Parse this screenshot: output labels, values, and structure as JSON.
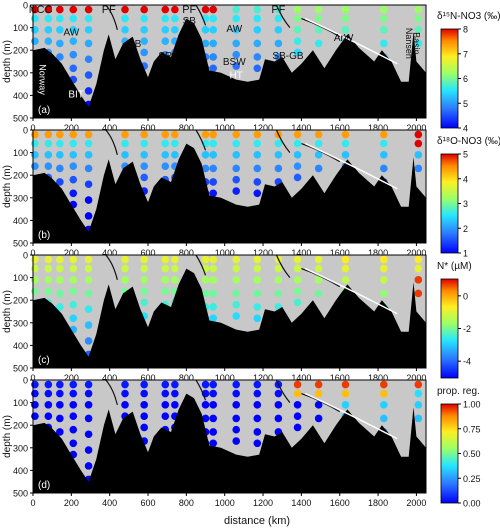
{
  "chart_data": [
    {
      "type": "scatter",
      "panel_label": "(a)",
      "colorbar_label": "δ¹⁵N-NO3 (‰)",
      "cbar_ticks": [
        "8",
        "7",
        "6",
        "5",
        "4"
      ],
      "vmin": 4,
      "vmax": 8,
      "xlim": [
        0,
        2050
      ],
      "ylim": [
        500,
        0
      ],
      "x_ticks": [
        "0",
        "200",
        "400",
        "600",
        "800",
        "1000",
        "1200",
        "1400",
        "1600",
        "1800",
        "2000"
      ],
      "y_ticks": [
        "0",
        "100",
        "200",
        "300",
        "400",
        "500"
      ],
      "ylabel": "depth (m)",
      "annotations": [
        {
          "text": "NCC",
          "x": 40,
          "y": -35
        },
        {
          "text": "PF",
          "x": 395,
          "y": -35
        },
        {
          "text": "PF",
          "x": 815,
          "y": -35
        },
        {
          "text": "PF",
          "x": 1280,
          "y": -35
        },
        {
          "text": "AW",
          "x": 200,
          "y": 135
        },
        {
          "text": "SB",
          "x": 530,
          "y": 185
        },
        {
          "text": "SR",
          "x": 690,
          "y": 240
        },
        {
          "text": "SB",
          "x": 815,
          "y": 85
        },
        {
          "text": "AW",
          "x": 1050,
          "y": 120
        },
        {
          "text": "BSW",
          "x": 1050,
          "y": 265
        },
        {
          "text": "HT",
          "x": 1060,
          "y": 325
        },
        {
          "text": "SB-GB",
          "x": 1330,
          "y": 240
        },
        {
          "text": "ArW",
          "x": 1620,
          "y": 160
        },
        {
          "text": "Norway",
          "x": 35,
          "y": 330
        },
        {
          "text": "BIT",
          "x": 225,
          "y": 410
        },
        {
          "text": "Nansen",
          "x": 1945,
          "y": 170
        },
        {
          "text": "Basin",
          "x": 1985,
          "y": 170
        }
      ]
    },
    {
      "type": "scatter",
      "panel_label": "(b)",
      "colorbar_label": "δ¹⁸O-NO3 (‰)",
      "cbar_ticks": [
        "5",
        "4",
        "3",
        "2",
        "1"
      ],
      "vmin": 1,
      "vmax": 5,
      "xlim": [
        0,
        2050
      ],
      "ylim": [
        500,
        0
      ],
      "x_ticks": [
        "0",
        "200",
        "400",
        "600",
        "800",
        "1000",
        "1200",
        "1400",
        "1600",
        "1800",
        "2000"
      ],
      "y_ticks": [
        "0",
        "100",
        "200",
        "300",
        "400",
        "500"
      ],
      "ylabel": "depth (m)"
    },
    {
      "type": "scatter",
      "panel_label": "(c)",
      "colorbar_label": "N* (µM)",
      "cbar_ticks": [
        "0",
        "-2",
        "-4"
      ],
      "vmin": -4.5,
      "vmax": 1.5,
      "xlim": [
        0,
        2050
      ],
      "ylim": [
        500,
        0
      ],
      "x_ticks": [
        "0",
        "200",
        "400",
        "600",
        "800",
        "1000",
        "1200",
        "1400",
        "1600",
        "1800",
        "2000"
      ],
      "y_ticks": [
        "0",
        "100",
        "200",
        "300",
        "400",
        "500"
      ],
      "ylabel": "depth (m)"
    },
    {
      "type": "scatter",
      "panel_label": "(d)",
      "colorbar_label": "prop. reg.",
      "cbar_ticks": [
        "1.00",
        "0.75",
        "0.50",
        "0.25",
        "0.00"
      ],
      "vmin": 0,
      "vmax": 1,
      "xlim": [
        0,
        2050
      ],
      "ylim": [
        500,
        0
      ],
      "x_ticks": [
        "0",
        "200",
        "400",
        "600",
        "800",
        "1000",
        "1200",
        "1400",
        "1600",
        "1800",
        "2000"
      ],
      "y_ticks": [
        "0",
        "100",
        "200",
        "300",
        "400",
        "500"
      ],
      "ylabel": "depth (m)",
      "xlabel": "distance (km)"
    }
  ],
  "stations": [
    {
      "x": 10,
      "d": [
        20,
        60,
        110,
        160
      ]
    },
    {
      "x": 80,
      "d": [
        20,
        60,
        110,
        160,
        210
      ]
    },
    {
      "x": 140,
      "d": [
        20,
        60,
        110,
        170,
        230
      ]
    },
    {
      "x": 210,
      "d": [
        20,
        60,
        110,
        160,
        220,
        280,
        330
      ]
    },
    {
      "x": 290,
      "d": [
        20,
        60,
        110,
        170,
        240,
        310,
        380,
        440
      ]
    },
    {
      "x": 480,
      "d": [
        20,
        60,
        110,
        160
      ]
    },
    {
      "x": 580,
      "d": [
        20,
        60,
        110,
        160,
        210,
        270
      ]
    },
    {
      "x": 690,
      "d": [
        20,
        60,
        110,
        160,
        220
      ]
    },
    {
      "x": 740,
      "d": [
        20,
        60,
        110,
        160,
        210
      ]
    },
    {
      "x": 900,
      "d": [
        20,
        60,
        110,
        170,
        230,
        280
      ]
    },
    {
      "x": 940,
      "d": [
        20,
        60,
        110,
        170,
        230,
        280
      ]
    },
    {
      "x": 1060,
      "d": [
        20,
        60,
        110,
        170,
        220,
        270
      ]
    },
    {
      "x": 1170,
      "d": [
        20,
        60,
        110,
        170,
        230,
        280
      ]
    },
    {
      "x": 1280,
      "d": [
        20,
        60,
        110,
        170,
        230
      ]
    },
    {
      "x": 1380,
      "d": [
        20,
        60,
        110,
        160,
        210
      ]
    },
    {
      "x": 1490,
      "d": [
        20,
        60,
        110,
        170
      ]
    },
    {
      "x": 1630,
      "d": [
        20,
        60,
        110,
        160
      ]
    },
    {
      "x": 1830,
      "d": [
        20,
        60,
        110,
        170,
        230
      ]
    },
    {
      "x": 2010,
      "d": [
        20,
        60,
        110,
        170
      ]
    }
  ],
  "bathymetry": [
    [
      0,
      200
    ],
    [
      60,
      190
    ],
    [
      100,
      215
    ],
    [
      150,
      260
    ],
    [
      200,
      330
    ],
    [
      250,
      400
    ],
    [
      290,
      450
    ],
    [
      330,
      350
    ],
    [
      370,
      200
    ],
    [
      395,
      130
    ],
    [
      430,
      240
    ],
    [
      470,
      170
    ],
    [
      520,
      140
    ],
    [
      560,
      240
    ],
    [
      600,
      320
    ],
    [
      630,
      250
    ],
    [
      670,
      210
    ],
    [
      720,
      230
    ],
    [
      760,
      130
    ],
    [
      800,
      60
    ],
    [
      840,
      80
    ],
    [
      880,
      150
    ],
    [
      920,
      290
    ],
    [
      980,
      300
    ],
    [
      1060,
      330
    ],
    [
      1120,
      340
    ],
    [
      1180,
      330
    ],
    [
      1210,
      240
    ],
    [
      1260,
      250
    ],
    [
      1300,
      230
    ],
    [
      1350,
      300
    ],
    [
      1400,
      260
    ],
    [
      1460,
      200
    ],
    [
      1520,
      280
    ],
    [
      1580,
      200
    ],
    [
      1640,
      130
    ],
    [
      1700,
      190
    ],
    [
      1780,
      250
    ],
    [
      1820,
      200
    ],
    [
      1870,
      250
    ],
    [
      1920,
      340
    ],
    [
      1960,
      340
    ],
    [
      1985,
      120
    ],
    [
      2000,
      250
    ],
    [
      2050,
      300
    ]
  ]
}
